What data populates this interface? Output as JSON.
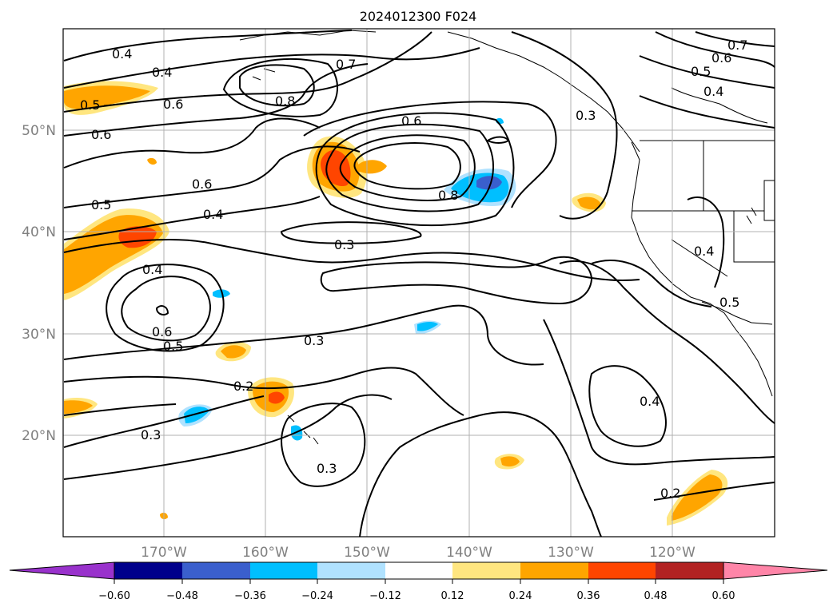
{
  "title": "2024012300 F024",
  "lat_labels": [
    "50°N",
    "40°N",
    "30°N",
    "20°N"
  ],
  "lon_labels": [
    "170°W",
    "160°W",
    "150°W",
    "140°W",
    "130°W",
    "120°W"
  ],
  "contour_labels": [
    "0.4",
    "0.4",
    "0.5",
    "0.6",
    "0.7",
    "0.8",
    "0.6",
    "0.6",
    "0.6",
    "0.7",
    "0.5",
    "0.4",
    "0.5",
    "0.6",
    "0.8",
    "0.4",
    "0.3",
    "0.4",
    "0.3",
    "0.6",
    "0.5",
    "0.3",
    "0.2",
    "0.3",
    "0.3",
    "0.4",
    "0.2",
    "0.4",
    "0.5"
  ],
  "colorbar": {
    "tick_labels": [
      "−0.60",
      "−0.48",
      "−0.36",
      "−0.24",
      "−0.12",
      "0.12",
      "0.24",
      "0.36",
      "0.48",
      "0.60"
    ],
    "colors": [
      "#9932cc",
      "#00008b",
      "#3a5fcd",
      "#00bfff",
      "#b0e2ff",
      "#ffffff",
      "#ffe680",
      "#ffa500",
      "#ff4500",
      "#b22222",
      "#ff85a8"
    ]
  }
}
